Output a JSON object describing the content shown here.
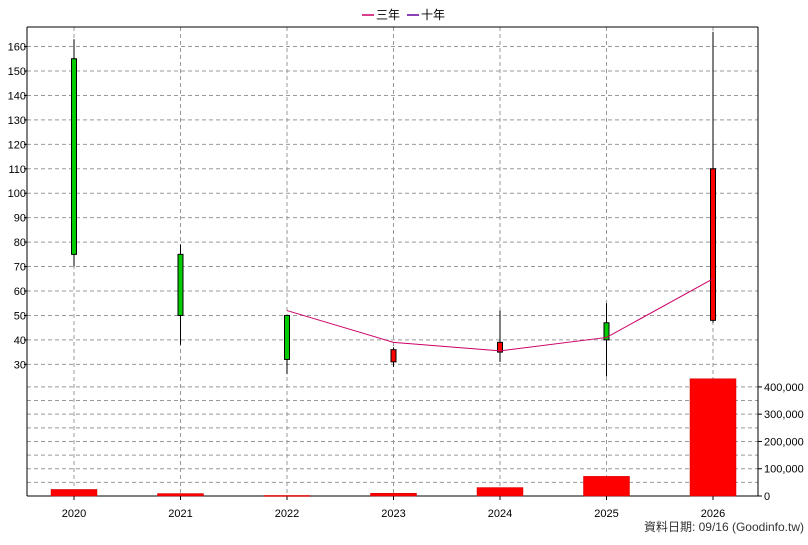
{
  "chart_data": {
    "type": "candlestick",
    "categories": [
      "2020",
      "2021",
      "2022",
      "2023",
      "2024",
      "2025",
      "2026"
    ],
    "legend": {
      "placement": "top-center",
      "entries": [
        {
          "name": "三年",
          "color": "#cc0066"
        },
        {
          "name": "十年",
          "color": "#660099"
        }
      ]
    },
    "price": {
      "ylim": [
        24,
        168
      ],
      "ticks": [
        30,
        40,
        50,
        60,
        70,
        80,
        90,
        100,
        110,
        120,
        130,
        140,
        150,
        160
      ],
      "candles": [
        {
          "open": 75,
          "close": 155,
          "high": 163,
          "low": 70
        },
        {
          "open": 50,
          "close": 75,
          "high": 79,
          "low": 38
        },
        {
          "open": 32,
          "close": 50,
          "high": 50,
          "low": 26
        },
        {
          "open": 36,
          "close": 31,
          "high": 37,
          "low": 29
        },
        {
          "open": 39,
          "close": 35,
          "high": 52,
          "low": 31
        },
        {
          "open": 40,
          "close": 47,
          "high": 55,
          "low": 25
        },
        {
          "open": 110,
          "close": 48,
          "high": 166,
          "low": 47
        }
      ],
      "three_year_line": [
        null,
        null,
        52,
        39,
        35.5,
        41,
        65
      ]
    },
    "volume": {
      "ylim": [
        0,
        440000
      ],
      "ticks": [
        0,
        100000,
        200000,
        300000,
        400000
      ],
      "tick_labels": [
        "0",
        "100,000",
        "200,000",
        "300,000",
        "400,000"
      ],
      "values": [
        24000,
        9000,
        2000,
        10000,
        31000,
        72000,
        430000
      ],
      "color": "#ff0000"
    },
    "grid": true
  },
  "footer": {
    "credit": "資料日期: 09/16  (Goodinfo.tw)"
  },
  "colors": {
    "up": "#ff0000",
    "down": "#00cc00",
    "axis": "#000000",
    "grid": "#999999"
  }
}
